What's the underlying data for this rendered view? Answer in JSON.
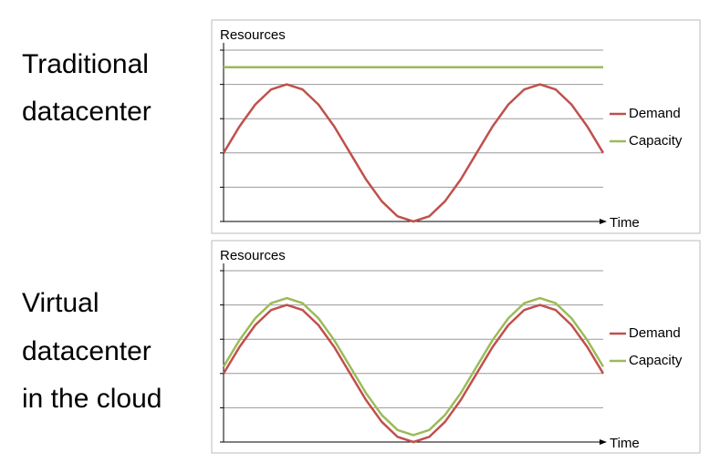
{
  "chart_data": [
    {
      "type": "line",
      "title": [
        "Traditional",
        "datacenter"
      ],
      "ylabel": "Resources",
      "xlabel": "Time",
      "x": [
        0,
        1,
        2,
        3,
        4,
        5,
        6,
        7,
        8,
        9,
        10,
        11,
        12,
        13,
        14,
        15,
        16,
        17,
        18,
        19,
        20,
        21,
        22,
        23,
        24
      ],
      "xlim": [
        0,
        24
      ],
      "ylim": [
        0,
        5
      ],
      "yticks": [
        0,
        1,
        2,
        3,
        4,
        5
      ],
      "grid": true,
      "series": [
        {
          "name": "Demand",
          "color": "#c0504d",
          "values": [
            2,
            2.77,
            3.41,
            3.85,
            4,
            3.85,
            3.41,
            2.77,
            2,
            1.23,
            0.59,
            0.15,
            0,
            0.15,
            0.59,
            1.23,
            2,
            2.77,
            3.41,
            3.85,
            4,
            3.85,
            3.41,
            2.77,
            2
          ]
        },
        {
          "name": "Capacity",
          "color": "#9bbb59",
          "values": [
            4.5,
            4.5,
            4.5,
            4.5,
            4.5,
            4.5,
            4.5,
            4.5,
            4.5,
            4.5,
            4.5,
            4.5,
            4.5,
            4.5,
            4.5,
            4.5,
            4.5,
            4.5,
            4.5,
            4.5,
            4.5,
            4.5,
            4.5,
            4.5,
            4.5
          ]
        }
      ]
    },
    {
      "type": "line",
      "title": [
        "Virtual",
        "datacenter",
        "in the cloud"
      ],
      "ylabel": "Resources",
      "xlabel": "Time",
      "x": [
        0,
        1,
        2,
        3,
        4,
        5,
        6,
        7,
        8,
        9,
        10,
        11,
        12,
        13,
        14,
        15,
        16,
        17,
        18,
        19,
        20,
        21,
        22,
        23,
        24
      ],
      "xlim": [
        0,
        24
      ],
      "ylim": [
        0,
        5
      ],
      "yticks": [
        0,
        1,
        2,
        3,
        4,
        5
      ],
      "grid": true,
      "series": [
        {
          "name": "Demand",
          "color": "#c0504d",
          "values": [
            2,
            2.77,
            3.41,
            3.85,
            4,
            3.85,
            3.41,
            2.77,
            2,
            1.23,
            0.59,
            0.15,
            0,
            0.15,
            0.59,
            1.23,
            2,
            2.77,
            3.41,
            3.85,
            4,
            3.85,
            3.41,
            2.77,
            2
          ]
        },
        {
          "name": "Capacity",
          "color": "#9bbb59",
          "values": [
            2.2,
            2.97,
            3.61,
            4.05,
            4.2,
            4.05,
            3.61,
            2.97,
            2.2,
            1.43,
            0.79,
            0.35,
            0.2,
            0.35,
            0.79,
            1.43,
            2.2,
            2.97,
            3.61,
            4.05,
            4.2,
            4.05,
            3.61,
            2.97,
            2.2
          ]
        }
      ]
    }
  ]
}
